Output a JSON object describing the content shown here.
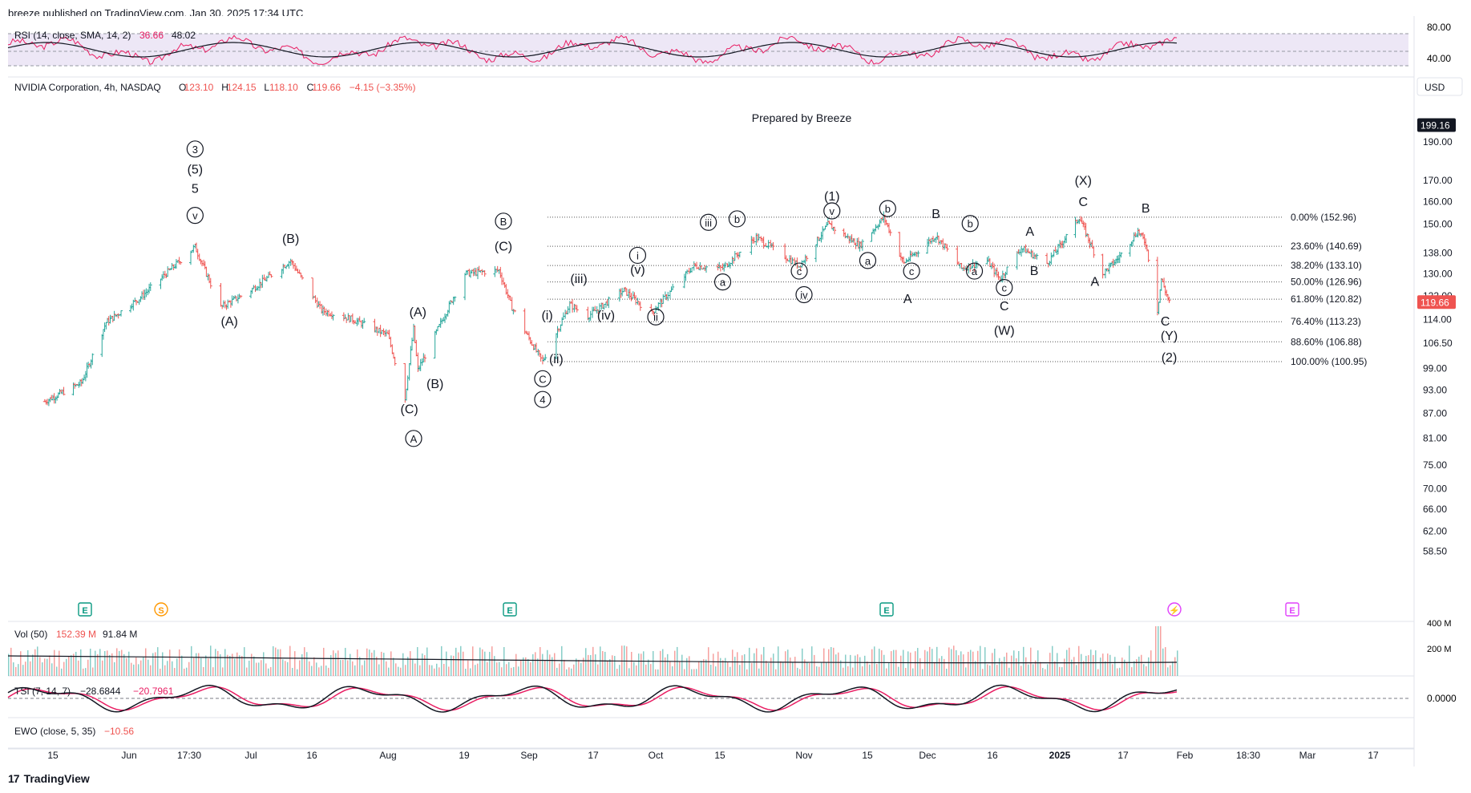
{
  "header": {
    "published": "breeze published on TradingView.com, Jan 30, 2025 17:34 UTC"
  },
  "footer": {
    "brand": "TradingView",
    "logo_mark": "17"
  },
  "symbol": {
    "name": "NVIDIA Corporation, 4h, NASDAQ",
    "o_label": "O",
    "o": "123.10",
    "h_label": "H",
    "h": "124.15",
    "l_label": "L",
    "l": "118.10",
    "c_label": "C",
    "c": "119.66",
    "change": "−4.15 (−3.35%)"
  },
  "currency": "USD",
  "prepared_by": "Prepared by Breeze",
  "colors": {
    "up": "#26a69a",
    "down": "#ef5350",
    "rsi": "#e91e63",
    "sma": "#131722",
    "rsi_band": "#ede7f6",
    "earnings": "#089981",
    "dividend": "#ff9800",
    "event": "#e040fb"
  },
  "panes": {
    "rsi": {
      "label": "RSI (14, close, SMA, 14, 2)",
      "v1": "36.66",
      "v2": "48.02",
      "ticks": [
        "80.00",
        "40.00"
      ]
    },
    "vol": {
      "label": "Vol (50)",
      "v1": "152.39 M",
      "v2": "91.84 M",
      "ticks": [
        "400 M",
        "200 M"
      ]
    },
    "tsi": {
      "label": "TSI (7, 14, 7)",
      "v1": "−28.6844",
      "v2": "−20.7961",
      "ticks": [
        "0.0000"
      ]
    },
    "ewo": {
      "label": "EWO (close, 5, 35)",
      "v1": "−10.56"
    }
  },
  "event_markers": [
    {
      "letter": "E",
      "type": "earnings"
    },
    {
      "letter": "S",
      "type": "split"
    },
    {
      "letter": "E",
      "type": "earnings"
    },
    {
      "letter": "E",
      "type": "earnings"
    },
    {
      "letter": "⚡",
      "type": "event"
    },
    {
      "letter": "E",
      "type": "earnings-future"
    }
  ],
  "chart_data": {
    "type": "line",
    "title": "NVIDIA Corporation, 4h, NASDAQ",
    "y_scale": "log",
    "price_axis_labels": [
      "199.16",
      "190.00",
      "170.00",
      "160.00",
      "150.00",
      "138.00",
      "130.00",
      "122.00",
      "114.00",
      "106.50",
      "99.00",
      "93.00",
      "87.00",
      "81.00",
      "75.00",
      "70.00",
      "66.00",
      "62.00",
      "58.50"
    ],
    "price_label_last": "119.66",
    "price_label_max": "199.16",
    "x_tick_labels": [
      "15",
      "Jun",
      "17:30",
      "Jul",
      "16",
      "Aug",
      "19",
      "Sep",
      "17",
      "Oct",
      "15",
      "Nov",
      "15",
      "Dec",
      "16",
      "2025",
      "17",
      "Feb",
      "18:30",
      "Mar",
      "17"
    ],
    "series": [
      {
        "values": [
          {
            "x": "2024-05-13",
            "y": 90.0
          },
          {
            "x": "2024-05-22",
            "y": 95.0
          },
          {
            "x": "2024-05-28",
            "y": 113.0
          },
          {
            "x": "2024-06-05",
            "y": 121.0
          },
          {
            "x": "2024-06-18",
            "y": 140.5
          },
          {
            "x": "2024-06-24",
            "y": 118.0
          },
          {
            "x": "2024-07-01",
            "y": 124.0
          },
          {
            "x": "2024-07-10",
            "y": 135.0
          },
          {
            "x": "2024-07-17",
            "y": 117.0
          },
          {
            "x": "2024-07-24",
            "y": 114.0
          },
          {
            "x": "2024-08-01",
            "y": 109.0
          },
          {
            "x": "2024-08-05",
            "y": 90.7
          },
          {
            "x": "2024-08-07",
            "y": 111.0
          },
          {
            "x": "2024-08-08",
            "y": 98.5
          },
          {
            "x": "2024-08-19",
            "y": 130.0
          },
          {
            "x": "2024-08-27",
            "y": 131.3
          },
          {
            "x": "2024-08-30",
            "y": 118.0
          },
          {
            "x": "2024-09-06",
            "y": 100.95
          },
          {
            "x": "2024-09-12",
            "y": 119.0
          },
          {
            "x": "2024-09-16",
            "y": 115.0
          },
          {
            "x": "2024-09-24",
            "y": 124.0
          },
          {
            "x": "2024-09-30",
            "y": 116.0
          },
          {
            "x": "2024-10-09",
            "y": 133.0
          },
          {
            "x": "2024-10-15",
            "y": 132.0
          },
          {
            "x": "2024-10-22",
            "y": 144.4
          },
          {
            "x": "2024-10-31",
            "y": 133.0
          },
          {
            "x": "2024-11-07",
            "y": 149.8
          },
          {
            "x": "2024-11-15",
            "y": 141.0
          },
          {
            "x": "2024-11-21",
            "y": 152.9
          },
          {
            "x": "2024-11-26",
            "y": 134.0
          },
          {
            "x": "2024-12-04",
            "y": 145.0
          },
          {
            "x": "2024-12-10",
            "y": 132.0
          },
          {
            "x": "2024-12-16",
            "y": 135.0
          },
          {
            "x": "2024-12-19",
            "y": 128.0
          },
          {
            "x": "2024-12-24",
            "y": 140.0
          },
          {
            "x": "2024-12-30",
            "y": 134.0
          },
          {
            "x": "2025-01-07",
            "y": 152.96
          },
          {
            "x": "2025-01-13",
            "y": 130.0
          },
          {
            "x": "2025-01-17",
            "y": 136.0
          },
          {
            "x": "2025-01-22",
            "y": 147.0
          },
          {
            "x": "2025-01-24",
            "y": 142.0
          },
          {
            "x": "2025-01-27",
            "y": 117.0
          },
          {
            "x": "2025-01-28",
            "y": 128.0
          },
          {
            "x": "2025-01-30",
            "y": 119.66
          }
        ]
      }
    ],
    "fib_levels": [
      {
        "label": "0.00% (152.96)",
        "value": 152.96
      },
      {
        "label": "23.60% (140.69)",
        "value": 140.69
      },
      {
        "label": "38.20% (133.10)",
        "value": 133.1
      },
      {
        "label": "50.00% (126.96)",
        "value": 126.96
      },
      {
        "label": "61.80% (120.82)",
        "value": 120.82
      },
      {
        "label": "76.40% (113.23)",
        "value": 113.23
      },
      {
        "label": "88.60% (106.88)",
        "value": 106.88
      },
      {
        "label": "100.00% (100.95)",
        "value": 100.95
      }
    ],
    "wave_labels": [
      {
        "text": "3",
        "circled": true,
        "x": "2024-06-18",
        "y": 184.0
      },
      {
        "text": "(5)",
        "circled": false,
        "x": "2024-06-18",
        "y": 173.5
      },
      {
        "text": "5",
        "circled": false,
        "x": "2024-06-18",
        "y": 164.0
      },
      {
        "text": "v",
        "circled": true,
        "x": "2024-06-18",
        "y": 152.0
      },
      {
        "text": "(A)",
        "circled": false,
        "x": "2024-06-26",
        "y": 112.0
      },
      {
        "text": "(B)",
        "circled": false,
        "x": "2024-07-10",
        "y": 142.0
      },
      {
        "text": "(A)",
        "circled": false,
        "x": "2024-08-08",
        "y": 115.0
      },
      {
        "text": "(B)",
        "circled": false,
        "x": "2024-08-12",
        "y": 93.5
      },
      {
        "text": "(C)",
        "circled": false,
        "x": "2024-08-06",
        "y": 87.0
      },
      {
        "text": "A",
        "circled": true,
        "x": "2024-08-07",
        "y": 80.0
      },
      {
        "text": "B",
        "circled": true,
        "x": "2024-08-28",
        "y": 149.5
      },
      {
        "text": "(C)",
        "circled": false,
        "x": "2024-08-28",
        "y": 139.0
      },
      {
        "text": "(i)",
        "circled": false,
        "x": "2024-09-07",
        "y": 114.0
      },
      {
        "text": "(ii)",
        "circled": false,
        "x": "2024-09-09",
        "y": 100.5
      },
      {
        "text": "C",
        "circled": true,
        "x": "2024-09-06",
        "y": 95.0
      },
      {
        "text": "4",
        "circled": true,
        "x": "2024-09-06",
        "y": 89.5
      },
      {
        "text": "(iii)",
        "circled": false,
        "x": "2024-09-14",
        "y": 126.5
      },
      {
        "text": "(iv)",
        "circled": false,
        "x": "2024-09-20",
        "y": 114.0
      },
      {
        "text": "(v)",
        "circled": false,
        "x": "2024-09-27",
        "y": 130.0
      },
      {
        "text": "i",
        "circled": true,
        "x": "2024-09-27",
        "y": 135.5
      },
      {
        "text": "ii",
        "circled": true,
        "x": "2024-10-01",
        "y": 113.5
      },
      {
        "text": "iii",
        "circled": true,
        "x": "2024-10-12",
        "y": 149.0
      },
      {
        "text": "a",
        "circled": true,
        "x": "2024-10-15",
        "y": 125.5
      },
      {
        "text": "b",
        "circled": true,
        "x": "2024-10-18",
        "y": 150.5
      },
      {
        "text": "c",
        "circled": true,
        "x": "2024-10-31",
        "y": 129.5
      },
      {
        "text": "iv",
        "circled": true,
        "x": "2024-11-01",
        "y": 121.0
      },
      {
        "text": "(1)",
        "circled": false,
        "x": "2024-11-08",
        "y": 160.5
      },
      {
        "text": "v",
        "circled": true,
        "x": "2024-11-08",
        "y": 154.0
      },
      {
        "text": "a",
        "circled": true,
        "x": "2024-11-17",
        "y": 133.5
      },
      {
        "text": "b",
        "circled": true,
        "x": "2024-11-22",
        "y": 155.0
      },
      {
        "text": "c",
        "circled": true,
        "x": "2024-11-28",
        "y": 129.5
      },
      {
        "text": "A",
        "circled": false,
        "x": "2024-11-27",
        "y": 119.5
      },
      {
        "text": "B",
        "circled": false,
        "x": "2024-12-04",
        "y": 152.5
      },
      {
        "text": "b",
        "circled": true,
        "x": "2024-12-12",
        "y": 148.5
      },
      {
        "text": "a",
        "circled": true,
        "x": "2024-12-13",
        "y": 129.5
      },
      {
        "text": "c",
        "circled": true,
        "x": "2024-12-20",
        "y": 123.5
      },
      {
        "text": "C",
        "circled": false,
        "x": "2024-12-20",
        "y": 117.0
      },
      {
        "text": "(W)",
        "circled": false,
        "x": "2024-12-20",
        "y": 109.0
      },
      {
        "text": "A",
        "circled": false,
        "x": "2024-12-26",
        "y": 145.0
      },
      {
        "text": "B",
        "circled": false,
        "x": "2024-12-27",
        "y": 129.5
      },
      {
        "text": "(X)",
        "circled": false,
        "x": "2025-01-08",
        "y": 168.0
      },
      {
        "text": "C",
        "circled": false,
        "x": "2025-01-08",
        "y": 158.0
      },
      {
        "text": "A",
        "circled": false,
        "x": "2025-01-11",
        "y": 125.5
      },
      {
        "text": "B",
        "circled": false,
        "x": "2025-01-24",
        "y": 155.0
      },
      {
        "text": "C",
        "circled": false,
        "x": "2025-01-29",
        "y": 112.0
      },
      {
        "text": "(Y)",
        "circled": false,
        "x": "2025-01-30",
        "y": 107.5
      },
      {
        "text": "(2)",
        "circled": false,
        "x": "2025-01-30",
        "y": 101.0
      }
    ]
  }
}
